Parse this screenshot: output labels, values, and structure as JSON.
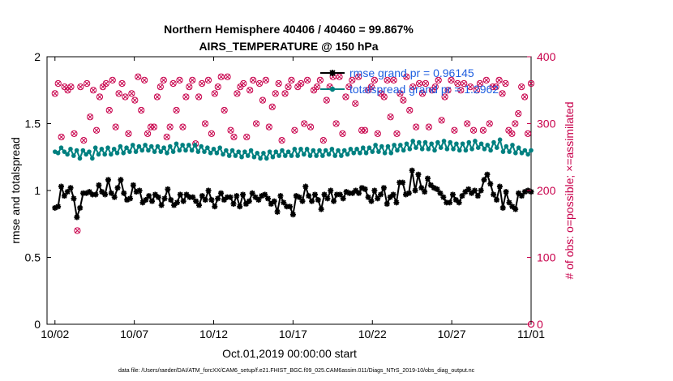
{
  "chart_data": {
    "type": "line",
    "title_line1": "Northern Hemisphere 40406 / 40460 = 99.867%",
    "title_line2": "AIRS_TEMPERATURE @ 150 hPa",
    "xlabel": "Oct.01,2019 00:00:00 start",
    "ylabel_left": "rmse and totalspread",
    "ylabel_right": "# of obs: o=possible; ×=assimilated",
    "x_tick_labels": [
      "10/02",
      "10/07",
      "10/12",
      "10/17",
      "10/22",
      "10/27",
      "11/01"
    ],
    "x_tick_days": [
      1,
      6,
      11,
      16,
      21,
      26,
      31
    ],
    "xlim": [
      0.5,
      31
    ],
    "ylim_left": [
      0,
      2
    ],
    "ylim_right": [
      0,
      400
    ],
    "y_ticks_left": [
      "0",
      "0.5",
      "1",
      "1.5",
      "2"
    ],
    "y_ticks_right": [
      "0",
      "100",
      "200",
      "300",
      "400"
    ],
    "legend": {
      "placement": "top-right",
      "entries": [
        "rmse grand pr = 0.96145",
        "totalspread grand pr = 1.2962"
      ]
    },
    "footnote": "data file: /Users/raeder/DAI/ATM_forcXX/CAM6_setup/f.e21.FHIST_BGC.f09_025.CAM6assim.011/Diags_NTrS_2019-10/obs_diag_output.nc",
    "colors": {
      "rmse": "#000000",
      "totalspread": "#008080",
      "obs": "#c8004b",
      "legend_text": "#1f5fe0"
    },
    "series": [
      {
        "name": "rmse grand pr = 0.96145",
        "axis": "left",
        "marker": "star",
        "values": [
          0.87,
          0.88,
          1.03,
          0.96,
          0.99,
          1.02,
          0.94,
          0.8,
          0.87,
          0.98,
          0.98,
          0.99,
          0.97,
          0.97,
          1.04,
          0.99,
          0.97,
          1.08,
          0.98,
          0.95,
          1.02,
          1.08,
          0.98,
          0.93,
          0.94,
          1.04,
          0.99,
          1.0,
          0.91,
          0.93,
          0.96,
          0.92,
          0.97,
          0.95,
          0.89,
          0.94,
          1.01,
          0.93,
          0.89,
          0.91,
          0.97,
          0.92,
          0.97,
          0.95,
          0.95,
          0.92,
          0.89,
          0.96,
          0.93,
          1.0,
          0.93,
          0.88,
          0.94,
          0.98,
          0.93,
          0.95,
          0.95,
          0.9,
          0.96,
          0.88,
          0.97,
          0.9,
          0.92,
          0.98,
          0.95,
          0.93,
          0.96,
          0.97,
          0.94,
          0.9,
          0.92,
          0.84,
          0.96,
          0.91,
          0.88,
          0.88,
          0.82,
          0.96,
          0.95,
          0.92,
          1.03,
          0.96,
          0.92,
          0.97,
          0.93,
          0.86,
          0.97,
          0.94,
          1.0,
          0.92,
          0.97,
          0.97,
          0.94,
          0.99,
          0.98,
          0.98,
          1.0,
          0.98,
          1.02,
          1.01,
          0.95,
          0.92,
          1.0,
          0.94,
          0.97,
          1.02,
          0.9,
          0.95,
          0.97,
          0.91,
          1.06,
          1.06,
          0.97,
          0.98,
          1.15,
          1.0,
          1.12,
          1.02,
          0.99,
          1.09,
          1.04,
          1.02,
          1.01,
          0.98,
          0.95,
          0.91,
          0.91,
          0.97,
          0.93,
          0.91,
          0.96,
          0.99,
          1.01,
          0.98,
          1.0,
          0.96,
          1.0,
          1.08,
          1.12,
          1.05,
          0.97,
          0.93,
          1.03,
          0.87,
          0.99,
          0.91,
          0.88,
          0.86,
          0.98,
          0.96,
          0.99,
          1.0,
          0.99
        ]
      },
      {
        "name": "totalspread grand pr = 1.2962",
        "axis": "left",
        "marker": "circle",
        "values": [
          1.29,
          1.28,
          1.32,
          1.29,
          1.27,
          1.31,
          1.26,
          1.3,
          1.24,
          1.3,
          1.27,
          1.29,
          1.24,
          1.32,
          1.27,
          1.31,
          1.27,
          1.32,
          1.27,
          1.31,
          1.28,
          1.33,
          1.28,
          1.32,
          1.29,
          1.34,
          1.29,
          1.33,
          1.3,
          1.34,
          1.3,
          1.33,
          1.29,
          1.33,
          1.29,
          1.32,
          1.28,
          1.33,
          1.29,
          1.35,
          1.3,
          1.34,
          1.3,
          1.34,
          1.3,
          1.34,
          1.29,
          1.33,
          1.29,
          1.32,
          1.28,
          1.31,
          1.28,
          1.32,
          1.27,
          1.3,
          1.26,
          1.3,
          1.26,
          1.29,
          1.25,
          1.29,
          1.26,
          1.3,
          1.25,
          1.28,
          1.24,
          1.28,
          1.24,
          1.29,
          1.25,
          1.29,
          1.26,
          1.3,
          1.26,
          1.29,
          1.26,
          1.31,
          1.26,
          1.31,
          1.27,
          1.31,
          1.26,
          1.3,
          1.26,
          1.3,
          1.26,
          1.3,
          1.27,
          1.31,
          1.26,
          1.3,
          1.26,
          1.3,
          1.27,
          1.31,
          1.28,
          1.31,
          1.28,
          1.32,
          1.28,
          1.32,
          1.29,
          1.34,
          1.29,
          1.33,
          1.28,
          1.33,
          1.28,
          1.34,
          1.3,
          1.34,
          1.3,
          1.35,
          1.31,
          1.37,
          1.32,
          1.36,
          1.31,
          1.36,
          1.31,
          1.35,
          1.3,
          1.36,
          1.32,
          1.37,
          1.31,
          1.36,
          1.31,
          1.35,
          1.3,
          1.35,
          1.3,
          1.36,
          1.31,
          1.37,
          1.32,
          1.35,
          1.31,
          1.34,
          1.3,
          1.36,
          1.32,
          1.38,
          1.29,
          1.33,
          1.29,
          1.34,
          1.28,
          1.32,
          1.28,
          1.3,
          1.27,
          1.3
        ]
      },
      {
        "name": "obs possible/assimilated",
        "axis": "right",
        "marker": "circle-x",
        "values": [
          345,
          360,
          280,
          355,
          350,
          355,
          285,
          140,
          355,
          275,
          360,
          310,
          350,
          290,
          340,
          355,
          360,
          320,
          365,
          295,
          345,
          360,
          340,
          285,
          345,
          335,
          370,
          320,
          365,
          285,
          295,
          295,
          340,
          355,
          365,
          280,
          295,
          360,
          320,
          365,
          295,
          340,
          355,
          365,
          270,
          340,
          360,
          300,
          365,
          285,
          345,
          355,
          370,
          320,
          370,
          290,
          280,
          345,
          355,
          360,
          280,
          350,
          365,
          300,
          360,
          335,
          365,
          295,
          325,
          345,
          360,
          275,
          345,
          355,
          365,
          290,
          355,
          360,
          300,
          365,
          295,
          350,
          355,
          365,
          275,
          335,
          355,
          370,
          300,
          370,
          285,
          340,
          355,
          365,
          330,
          370,
          290,
          290,
          350,
          355,
          365,
          285,
          345,
          340,
          365,
          310,
          365,
          285,
          345,
          335,
          370,
          320,
          355,
          295,
          360,
          345,
          360,
          295,
          350,
          355,
          365,
          305,
          340,
          350,
          365,
          290,
          360,
          350,
          360,
          300,
          355,
          290,
          350,
          360,
          290,
          365,
          300,
          355,
          355,
          365,
          345,
          360,
          290,
          285,
          300,
          315,
          355,
          340,
          285,
          360
        ]
      }
    ]
  }
}
